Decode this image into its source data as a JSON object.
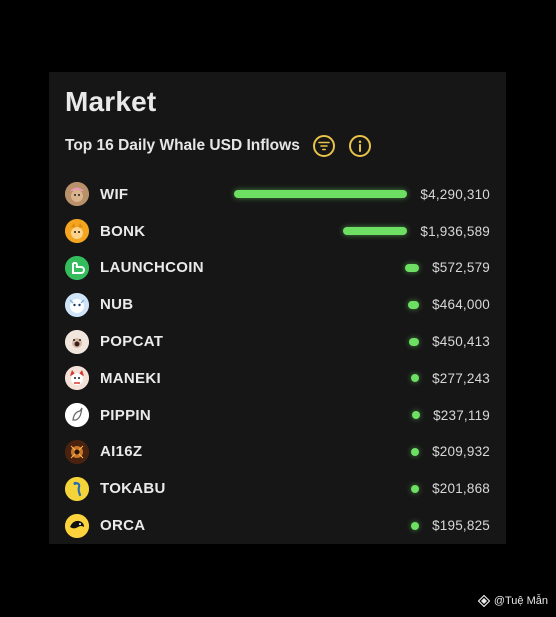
{
  "market": {
    "title": "Market",
    "subtitle": "Top 16 Daily Whale USD Inflows",
    "accent_color": "#e8c24a",
    "bar_color": "#6ddf62",
    "icons": {
      "filter": "filter-icon",
      "info": "info-icon"
    }
  },
  "tokens": [
    {
      "name": "WIF",
      "value": "$4,290,310",
      "amount": 4290310,
      "avatar_icon": "dog-hat-avatar"
    },
    {
      "name": "BONK",
      "value": "$1,936,589",
      "amount": 1936589,
      "avatar_icon": "shiba-avatar"
    },
    {
      "name": "LAUNCHCOIN",
      "value": "$572,579",
      "amount": 572579,
      "avatar_icon": "launchcoin-avatar"
    },
    {
      "name": "NUB",
      "value": "$464,000",
      "amount": 464000,
      "avatar_icon": "nub-avatar"
    },
    {
      "name": "POPCAT",
      "value": "$450,413",
      "amount": 450413,
      "avatar_icon": "cat-avatar"
    },
    {
      "name": "MANEKI",
      "value": "$277,243",
      "amount": 277243,
      "avatar_icon": "maneki-cat-avatar"
    },
    {
      "name": "PIPPIN",
      "value": "$237,119",
      "amount": 237119,
      "avatar_icon": "unicorn-avatar"
    },
    {
      "name": "AI16Z",
      "value": "$209,932",
      "amount": 209932,
      "avatar_icon": "ai16z-avatar"
    },
    {
      "name": "TOKABU",
      "value": "$201,868",
      "amount": 201868,
      "avatar_icon": "snake-avatar"
    },
    {
      "name": "ORCA",
      "value": "$195,825",
      "amount": 195825,
      "avatar_icon": "orca-avatar"
    }
  ],
  "watermark": {
    "text": "@Tuệ Mẫn"
  }
}
